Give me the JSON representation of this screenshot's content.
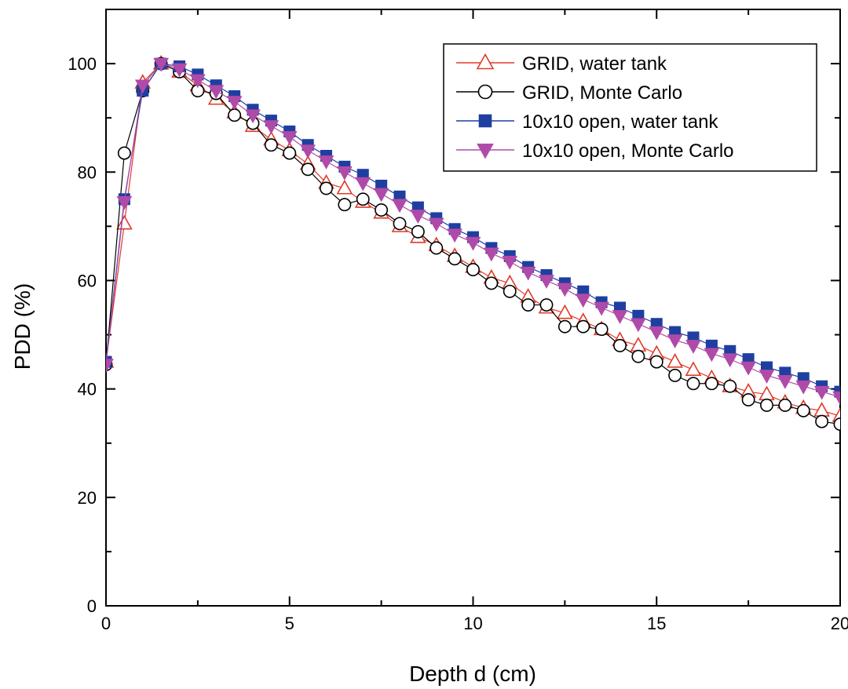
{
  "chart_data": {
    "type": "line",
    "xlabel": "Depth d (cm)",
    "ylabel": "PDD (%)",
    "xlim": [
      0,
      20
    ],
    "ylim": [
      0,
      110
    ],
    "xticks": [
      0,
      5,
      10,
      15,
      20
    ],
    "yticks": [
      0,
      20,
      40,
      60,
      80,
      100
    ],
    "grid": false,
    "legend_position": "top-right",
    "x": [
      0,
      0.5,
      1,
      1.5,
      2,
      2.5,
      3,
      3.5,
      4,
      4.5,
      5,
      5.5,
      6,
      6.5,
      7,
      7.5,
      8,
      8.5,
      9,
      9.5,
      10,
      10.5,
      11,
      11.5,
      12,
      12.5,
      13,
      13.5,
      14,
      14.5,
      15,
      15.5,
      16,
      16.5,
      17,
      17.5,
      18,
      18.5,
      19,
      19.5,
      20
    ],
    "series": [
      {
        "name": "GRID, water tank",
        "color": "#e03a2a",
        "marker": "triangle-up-open",
        "values": [
          45,
          70.5,
          96.5,
          100,
          98.5,
          96,
          93.5,
          91,
          88.5,
          86,
          84,
          81.5,
          78,
          77,
          74.5,
          72.5,
          70,
          68,
          66.5,
          64.5,
          62.5,
          60.5,
          59.5,
          57,
          55,
          54,
          52.5,
          51,
          49,
          48,
          46.5,
          45,
          43.5,
          42,
          40.5,
          39.5,
          39,
          37.5,
          36.5,
          36,
          35
        ]
      },
      {
        "name": "GRID, Monte Carlo",
        "color": "#000000",
        "marker": "circle-open",
        "values": [
          44.5,
          83.5,
          95,
          100,
          98.5,
          95,
          94.5,
          90.5,
          89,
          85,
          83.5,
          80.5,
          77,
          74,
          75,
          73,
          70.5,
          69,
          66,
          64,
          62,
          59.5,
          58,
          55.5,
          55.5,
          51.5,
          51.5,
          51,
          48,
          46,
          45,
          42.5,
          41,
          41,
          40.5,
          38,
          37,
          37,
          36,
          34,
          33.5
        ]
      },
      {
        "name": "10x10 open, water tank",
        "color": "#1f3fa0",
        "marker": "square-filled",
        "values": [
          45,
          75,
          95,
          100,
          99.5,
          98,
          96,
          94,
          91.5,
          89.5,
          87.5,
          85,
          83,
          81,
          79.5,
          77.5,
          75.5,
          73.5,
          71.5,
          69.5,
          68,
          66,
          64.5,
          62.5,
          61,
          59.5,
          58,
          56,
          55,
          53.5,
          52,
          50.5,
          49.5,
          48,
          47,
          45.5,
          44,
          43,
          42,
          40.5,
          39.5
        ]
      },
      {
        "name": "10x10 open, Monte Carlo",
        "color": "#b04aa8",
        "marker": "triangle-down-filled",
        "values": [
          44.5,
          74.5,
          96,
          100,
          99,
          97,
          95,
          93,
          90.5,
          88.5,
          86.5,
          84,
          82,
          80,
          78,
          76,
          74,
          72,
          70.5,
          68.5,
          67,
          65,
          63.5,
          61.5,
          60,
          58.5,
          56.5,
          55,
          53.5,
          52,
          50.5,
          49,
          48,
          46.5,
          45.5,
          44,
          42.5,
          41.5,
          40.5,
          39.5,
          38.5
        ]
      }
    ]
  }
}
